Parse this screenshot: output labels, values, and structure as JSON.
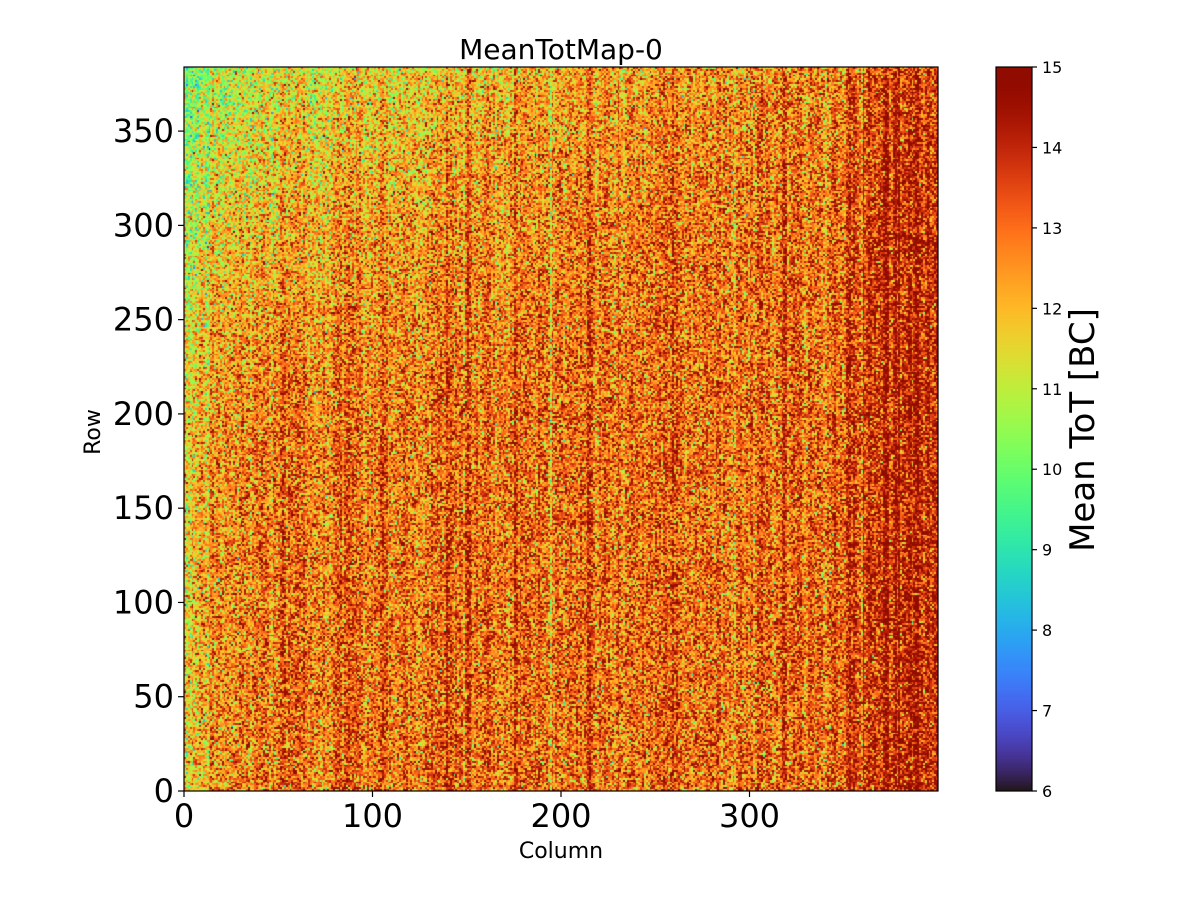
{
  "chart_data": {
    "type": "heatmap",
    "title": "MeanTotMap-0",
    "xlabel": "Column",
    "ylabel": "Row",
    "xlim": [
      0,
      400
    ],
    "ylim": [
      0,
      384
    ],
    "x_ticks": [
      0,
      100,
      200,
      300
    ],
    "y_ticks": [
      0,
      50,
      100,
      150,
      200,
      250,
      300,
      350
    ],
    "grid": false,
    "colorbar": {
      "label": "Mean ToT [BC]",
      "range": [
        6,
        15
      ],
      "ticks": [
        6,
        7,
        8,
        9,
        10,
        11,
        12,
        13,
        14,
        15
      ],
      "colormap": "turbo",
      "placement": "right"
    },
    "matrix_summary": {
      "rows": 384,
      "columns": 400,
      "typical_value": 13,
      "low_region": "left edge and upper-left corner, values about 10-11",
      "high_region": "right side columns 350-400, values about 14-15"
    }
  }
}
